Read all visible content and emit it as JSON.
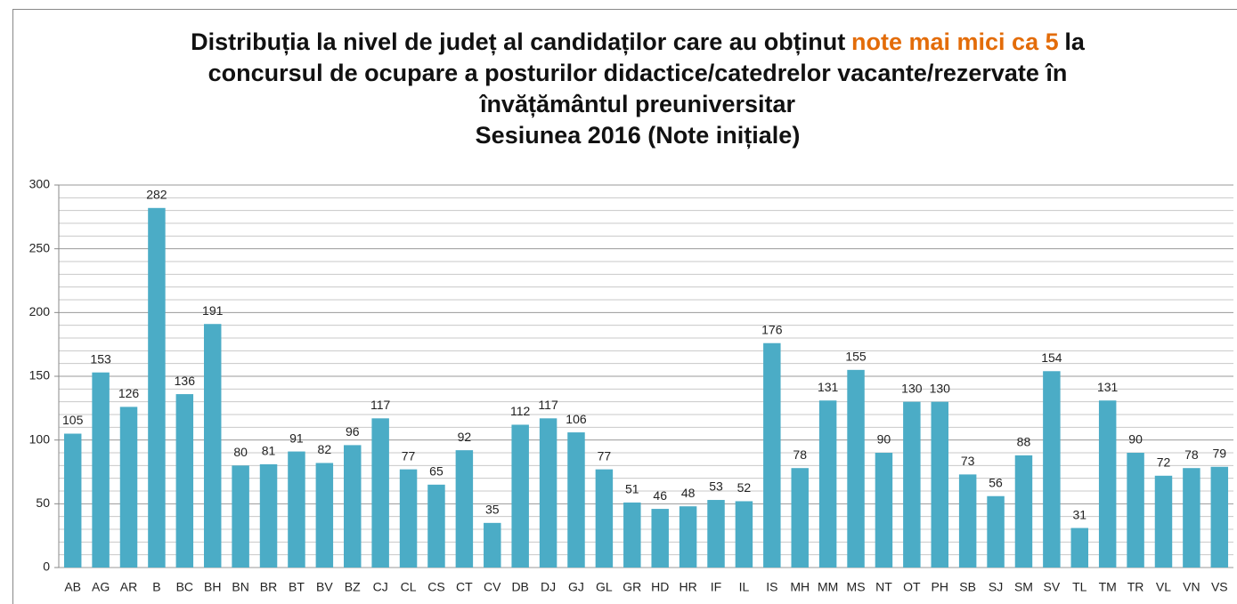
{
  "chart_data": {
    "type": "bar",
    "title": [
      "Distribuția la nivel de județ al candidaților care au obținut",
      "note mai mici ca 5",
      "la concursul de ocupare a posturilor didactice/catedrelor vacante/rezervate în învățământul preuniversitar"
    ],
    "subtitle": "Sesiunea 2016 (Note inițiale)",
    "highlight_color": "#e36c09",
    "categories": [
      "AB",
      "AG",
      "AR",
      "B",
      "BC",
      "BH",
      "BN",
      "BR",
      "BT",
      "BV",
      "BZ",
      "CJ",
      "CL",
      "CS",
      "CT",
      "CV",
      "DB",
      "DJ",
      "GJ",
      "GL",
      "GR",
      "HD",
      "HR",
      "IF",
      "IL",
      "IS",
      "MH",
      "MM",
      "MS",
      "NT",
      "OT",
      "PH",
      "SB",
      "SJ",
      "SM",
      "SV",
      "TL",
      "TM",
      "TR",
      "VL",
      "VN",
      "VS"
    ],
    "values": [
      105,
      153,
      126,
      282,
      136,
      191,
      80,
      81,
      91,
      82,
      96,
      117,
      77,
      65,
      92,
      35,
      112,
      117,
      106,
      77,
      51,
      46,
      48,
      53,
      52,
      176,
      78,
      131,
      155,
      90,
      130,
      130,
      73,
      56,
      88,
      154,
      31,
      131,
      90,
      72,
      78,
      79
    ],
    "color": "#4bacc6",
    "ylim": [
      0,
      300
    ],
    "yticks": [
      0,
      50,
      100,
      150,
      200,
      250,
      300
    ],
    "minor_yticks": [
      10,
      20,
      30,
      40,
      60,
      70,
      80,
      90,
      110,
      120,
      130,
      140,
      160,
      170,
      180,
      190,
      210,
      220,
      230,
      240,
      260,
      270,
      280,
      290
    ],
    "grid": true
  }
}
